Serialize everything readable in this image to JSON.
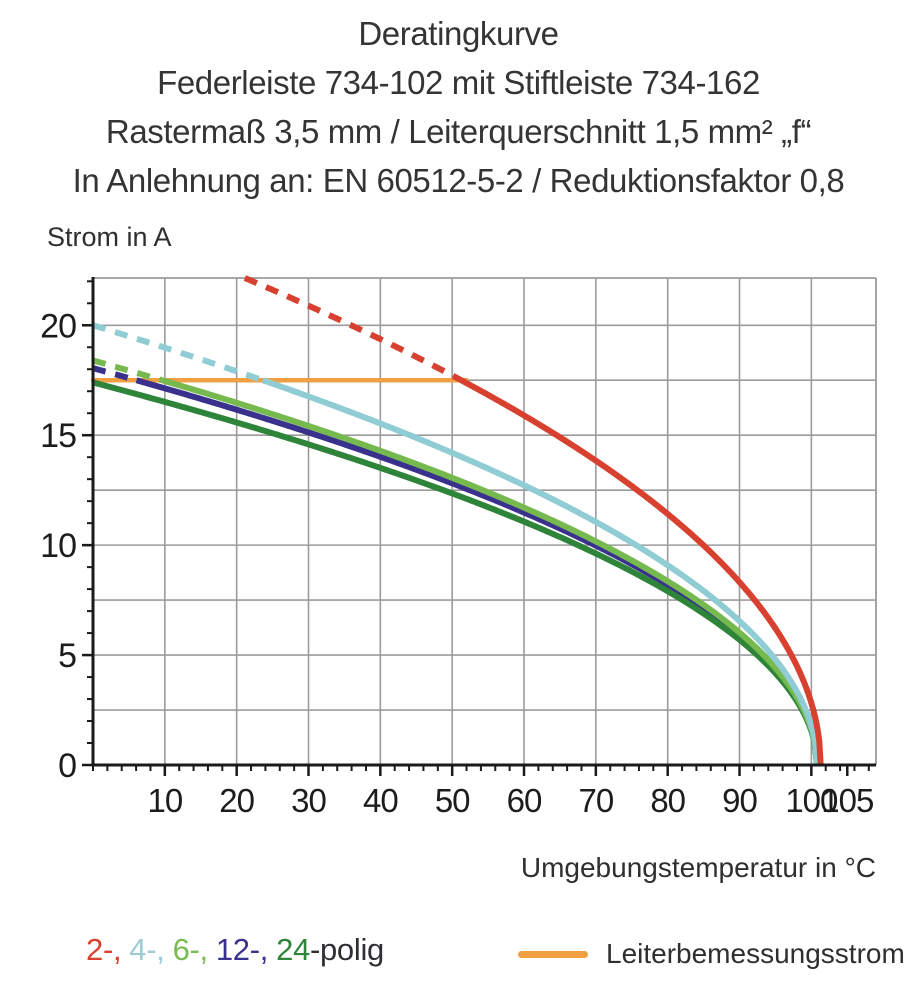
{
  "title": {
    "line1": "Deratingkurve",
    "line2": "Federleiste 734-102 mit Stiftleiste 734-162",
    "line3": "Rastermaß 3,5 mm / Leiterquerschnitt 1,5 mm² „f“",
    "line4": "In Anlehnung an: EN 60512-5-2 / Reduktionsfaktor 0,8"
  },
  "axis": {
    "y_title": "Strom in A",
    "x_title": "Umgebungstemperatur in °C"
  },
  "chart_data": {
    "type": "line",
    "title": "Deratingkurve",
    "xlabel": "Umgebungstemperatur in °C",
    "ylabel": "Strom in A",
    "xlim": [
      0,
      109
    ],
    "ylim": [
      0,
      22.15
    ],
    "grid": true,
    "grid_color": "#9b9b9b",
    "axis_color": "#1a1a1a",
    "x_gridlines": [
      10,
      20,
      30,
      40,
      50,
      60,
      70,
      80,
      90,
      100
    ],
    "y_gridlines": [
      2.5,
      5,
      7.5,
      10,
      12.5,
      15,
      17.5,
      20
    ],
    "x_major_ticks": [
      10,
      20,
      30,
      40,
      50,
      60,
      70,
      80,
      90,
      100,
      105
    ],
    "x_minor_tick_step": 2,
    "x_minor_tick_max": 108,
    "y_major_ticks": [
      0,
      5,
      10,
      15,
      20
    ],
    "y_minor_tick_step": 1,
    "legend_position": "bottom",
    "dashed_above_rated_current": true,
    "x_samples": [
      0,
      10,
      20,
      30,
      40,
      50,
      60,
      70,
      80,
      90,
      100
    ],
    "series": [
      {
        "name": "2-polig",
        "color": "#d8402f",
        "i0": 24.9,
        "t_end": 101.3,
        "values": [
          null,
          null,
          22.3,
          20.9,
          19.4,
          17.7,
          15.9,
          13.8,
          11.4,
          8.3,
          2.8
        ]
      },
      {
        "name": "4-polig",
        "color": "#8fccd3",
        "i0": 20.0,
        "t_end": 100.8,
        "values": [
          20.0,
          19.0,
          17.9,
          16.8,
          15.5,
          14.2,
          12.7,
          11.1,
          9.1,
          6.5,
          1.8
        ]
      },
      {
        "name": "6-polig",
        "color": "#76b94f",
        "i0": 18.4,
        "t_end": 100.8,
        "values": [
          18.4,
          17.5,
          16.5,
          15.4,
          14.3,
          13.1,
          11.7,
          10.2,
          8.4,
          6.0,
          1.6
        ]
      },
      {
        "name": "12-polig",
        "color": "#39318c",
        "i0": 18.05,
        "t_end": 100.8,
        "values": [
          18.1,
          17.1,
          16.2,
          15.1,
          14.0,
          12.8,
          11.5,
          10.0,
          8.2,
          5.9,
          1.6
        ]
      },
      {
        "name": "24-polig",
        "color": "#2e8539",
        "i0": 17.4,
        "t_end": 100.8,
        "values": [
          17.4,
          16.5,
          15.6,
          14.6,
          13.5,
          12.4,
          11.1,
          9.6,
          7.9,
          5.7,
          1.5
        ]
      }
    ],
    "rated_line": {
      "name": "Leiterbemessungsstrom",
      "color": "#f0a043",
      "value": 17.5,
      "t_start": 0,
      "t_end": 52
    }
  },
  "legend": {
    "pole_items": [
      {
        "text": "2-,",
        "color": "#d8402f"
      },
      {
        "text": "4-,",
        "color": "#9ccdd3"
      },
      {
        "text": "6-,",
        "color": "#79ba52"
      },
      {
        "text": "12-,",
        "color": "#39318c"
      },
      {
        "text": "24",
        "color": "#2e8539"
      }
    ],
    "suffix": "-polig",
    "suffix_color": "#2f2f33",
    "rated": {
      "label": "Leiterbemessungsstrom",
      "color": "#f0a043"
    }
  }
}
